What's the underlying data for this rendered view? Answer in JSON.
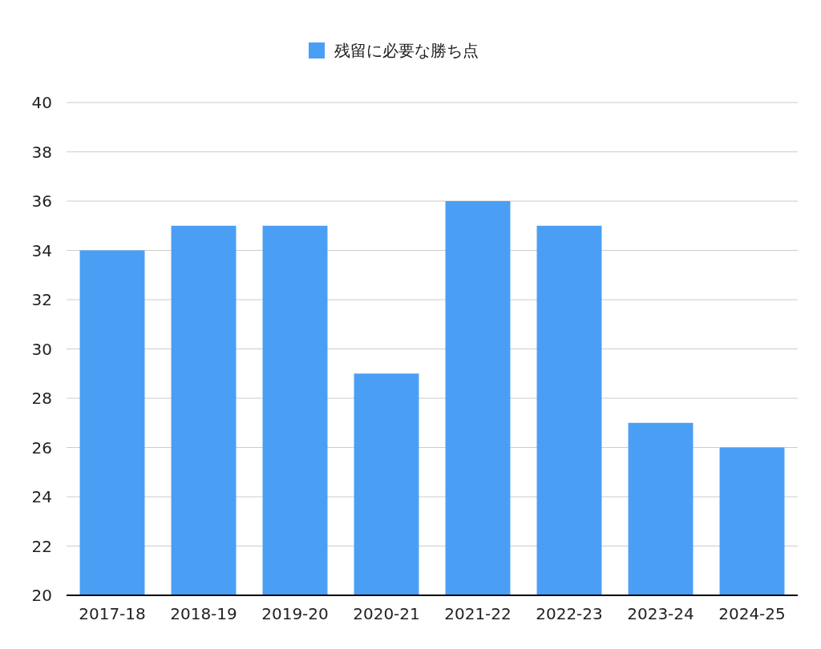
{
  "chart_data": {
    "type": "bar",
    "categories": [
      "2017-18",
      "2018-19",
      "2019-20",
      "2020-21",
      "2021-22",
      "2022-23",
      "2023-24",
      "2024-25"
    ],
    "series": [
      {
        "name": "残留に必要な勝ち点",
        "color": "#4a9ff5",
        "values": [
          34,
          35,
          35,
          29,
          36,
          35,
          27,
          26
        ]
      }
    ],
    "ylim": [
      20,
      40
    ],
    "yticks": [
      20,
      22,
      24,
      26,
      28,
      30,
      32,
      34,
      36,
      38,
      40
    ],
    "grid": "y",
    "legend": "top"
  }
}
